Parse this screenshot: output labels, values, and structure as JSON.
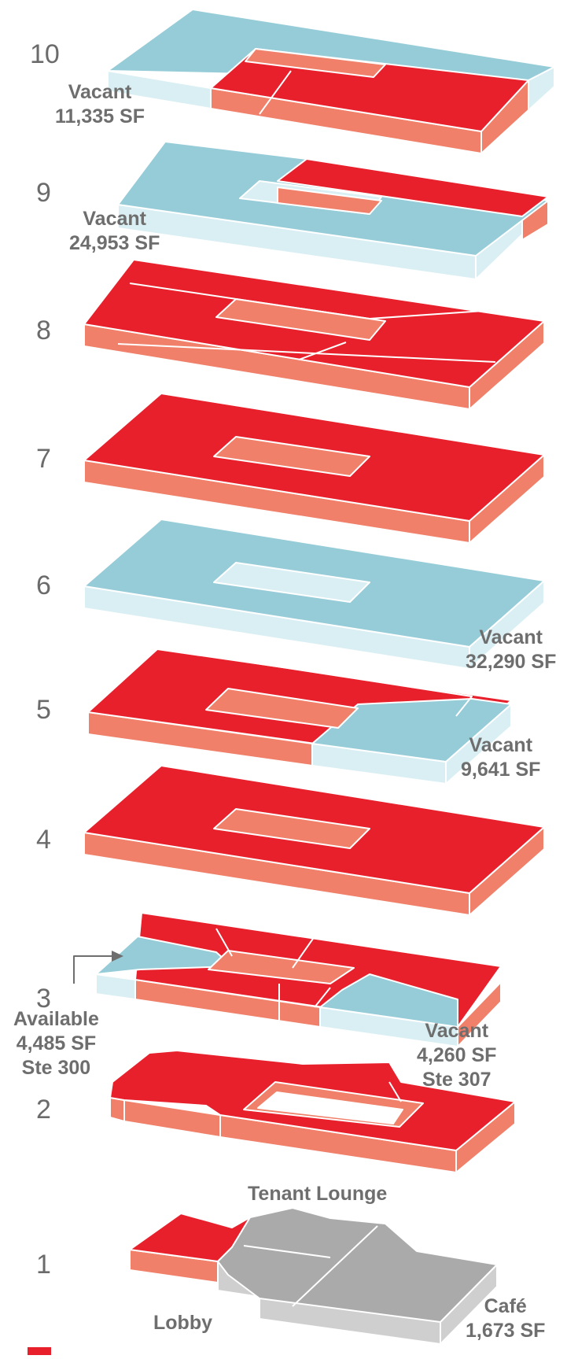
{
  "colors": {
    "leased_top": "#e8202c",
    "leased_side": "#f0806a",
    "vacant_top": "#95ccd8",
    "vacant_side": "#daeff3",
    "common_top": "#aaaaaa",
    "common_side": "#cfcfcf",
    "stroke": "#ffffff",
    "floor_number": "#6b6b6b",
    "label": "#6e6e6e"
  },
  "floors": {
    "f10": "10",
    "f9": "9",
    "f8": "8",
    "f7": "7",
    "f6": "6",
    "f5": "5",
    "f4": "4",
    "f3": "3",
    "f2": "2",
    "f1": "1"
  },
  "labels": {
    "f10_vacant": {
      "line1": "Vacant",
      "line2": "11,335 SF"
    },
    "f9_vacant": {
      "line1": "Vacant",
      "line2": "24,953 SF"
    },
    "f6_vacant": {
      "line1": "Vacant",
      "line2": "32,290 SF"
    },
    "f5_vacant": {
      "line1": "Vacant",
      "line2": "9,641 SF"
    },
    "f3_available": {
      "line1": "Available",
      "line2": "4,485 SF",
      "line3": "Ste 300"
    },
    "f3_vacant": {
      "line1": "Vacant",
      "line2": "4,260 SF",
      "line3": "Ste 307"
    },
    "f1_lounge": {
      "line1": "Tenant Lounge"
    },
    "f1_lobby": {
      "line1": "Lobby"
    },
    "f1_cafe": {
      "line1": "Café",
      "line2": "1,673 SF"
    }
  }
}
